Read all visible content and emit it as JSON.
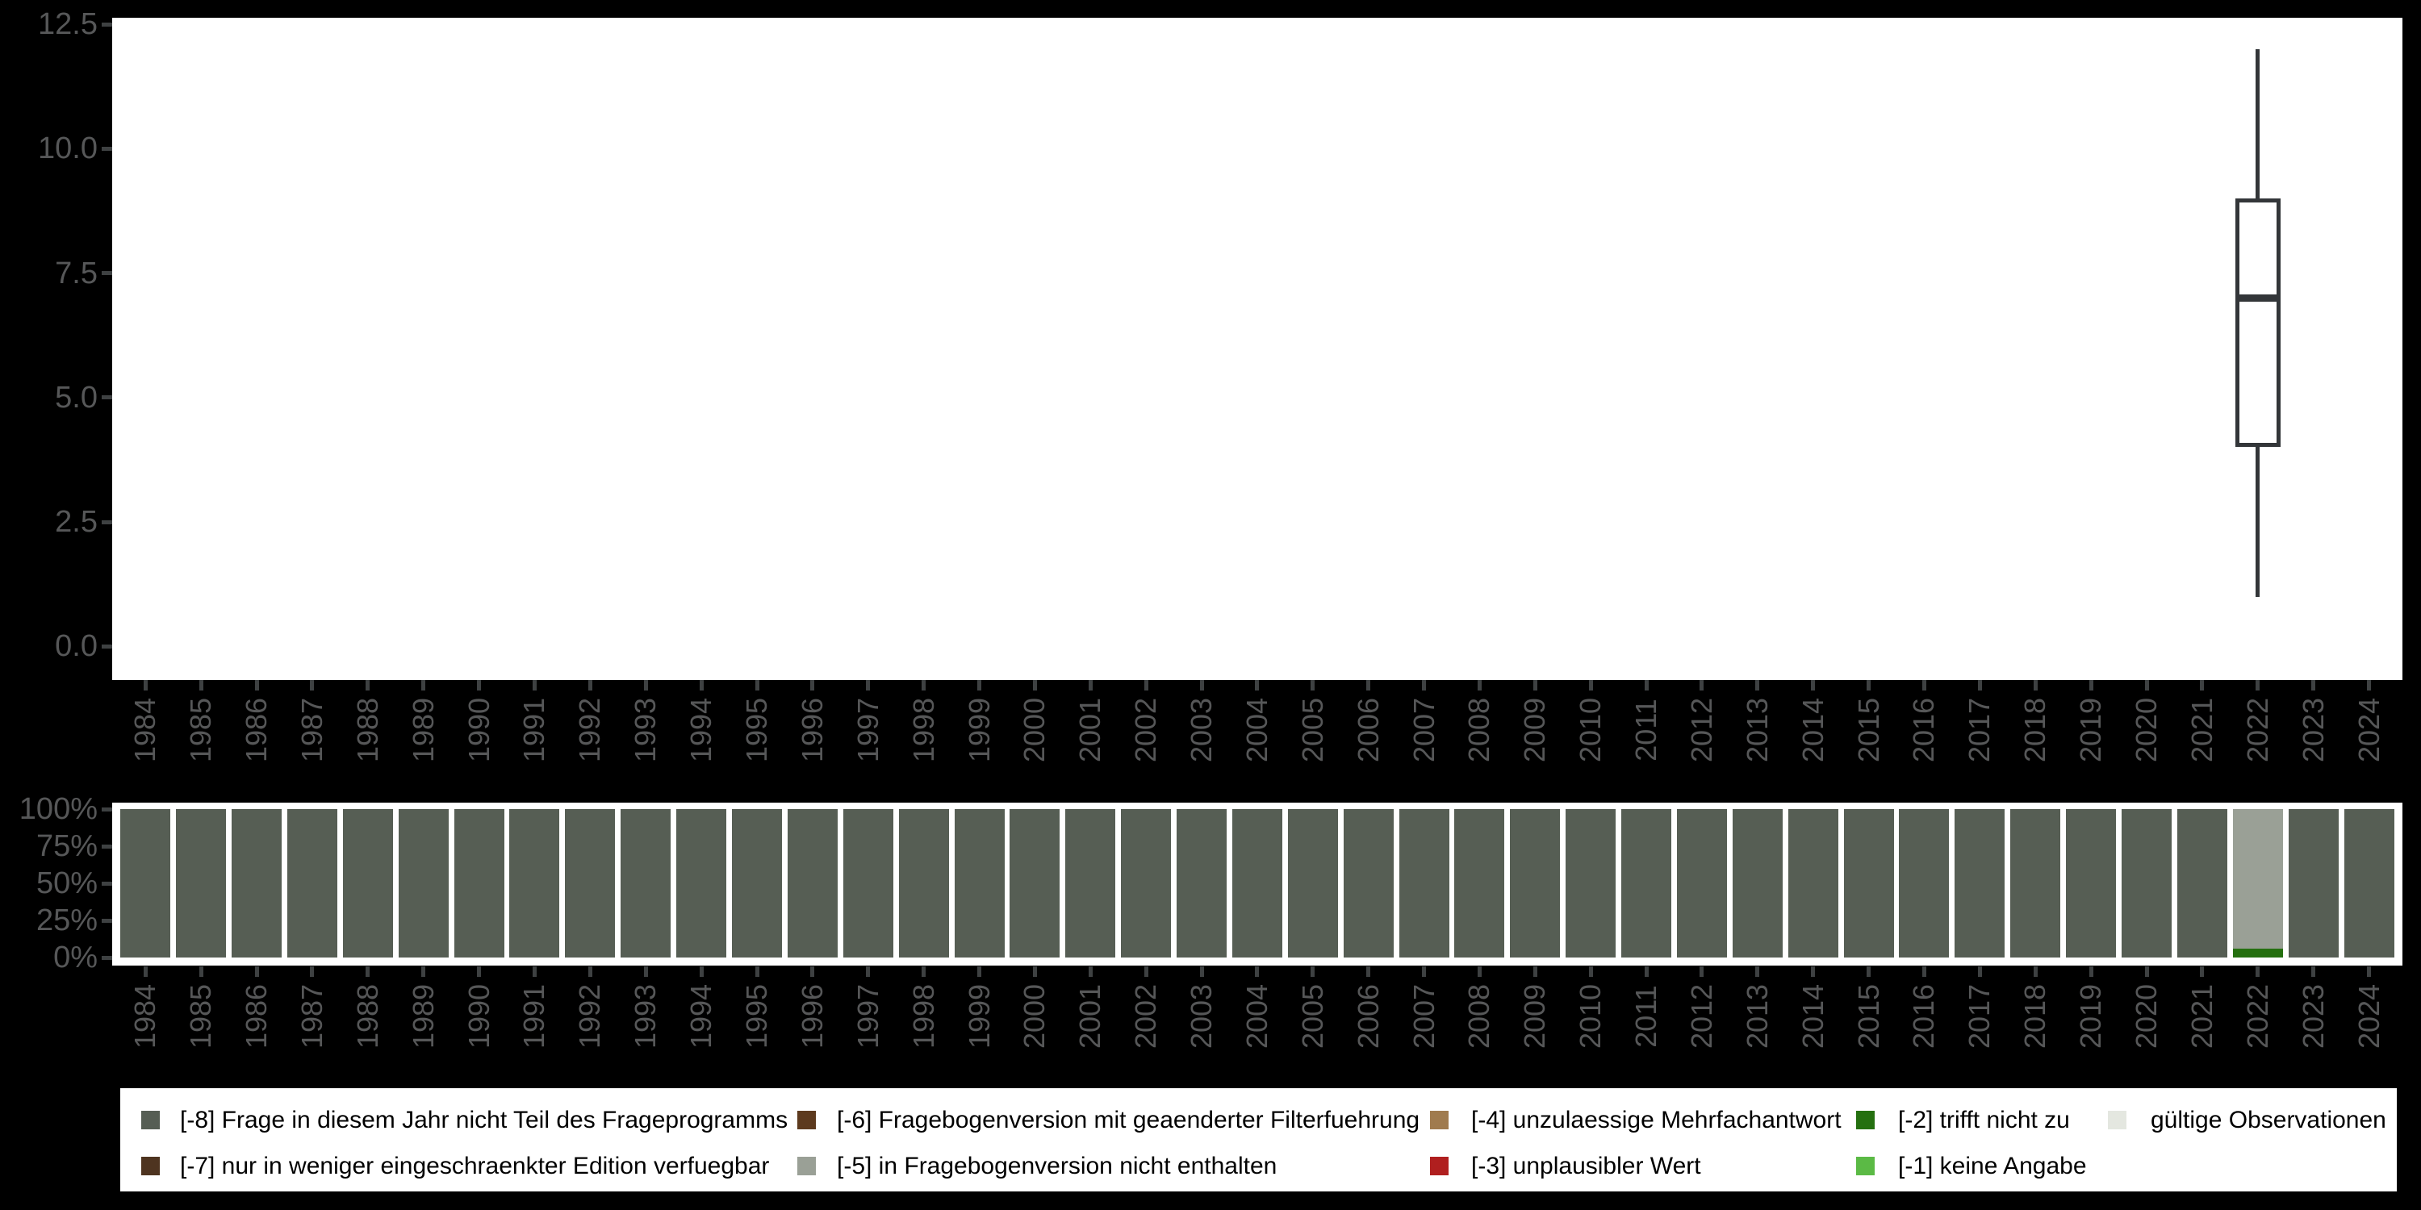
{
  "figure": {
    "title": "",
    "background_color": "#000000",
    "panel_color": "#ffffff"
  },
  "colors": {
    "axis_label": "#565758",
    "tick_mark": "#3e4142",
    "box_stroke": "#333639",
    "legend_text": "#000000"
  },
  "chart_data": [
    {
      "type": "boxplot",
      "title": "",
      "xlabel": "",
      "ylabel": "",
      "ylim": [
        0,
        12.5
      ],
      "y_tick_values": [
        12.5,
        10.0,
        7.5,
        5.0,
        2.5,
        0.0
      ],
      "y_tick_labels": [
        "12.5",
        "10.0",
        "7.5",
        "5.0",
        "2.5",
        "0.0"
      ],
      "x_categories": [
        "1984",
        "1985",
        "1986",
        "1987",
        "1988",
        "1989",
        "1990",
        "1991",
        "1992",
        "1993",
        "1994",
        "1995",
        "1996",
        "1997",
        "1998",
        "1999",
        "2000",
        "2001",
        "2002",
        "2003",
        "2004",
        "2005",
        "2006",
        "2007",
        "2008",
        "2009",
        "2010",
        "2011",
        "2012",
        "2013",
        "2014",
        "2015",
        "2016",
        "2017",
        "2018",
        "2019",
        "2020",
        "2021",
        "2022",
        "2023",
        "2024"
      ],
      "series": [
        {
          "x": "2022",
          "min": 1,
          "q1": 4,
          "median": 7,
          "q3": 9,
          "max": 12
        }
      ]
    },
    {
      "type": "bar",
      "stacked": true,
      "unit": "percent",
      "title": "",
      "xlabel": "",
      "ylabel": "",
      "ylim": [
        0,
        100
      ],
      "y_tick_values": [
        100,
        75,
        50,
        25,
        0
      ],
      "y_tick_labels": [
        "100%",
        "75%",
        "50%",
        "25%",
        "0%"
      ],
      "x_categories": [
        "1984",
        "1985",
        "1986",
        "1987",
        "1988",
        "1989",
        "1990",
        "1991",
        "1992",
        "1993",
        "1994",
        "1995",
        "1996",
        "1997",
        "1998",
        "1999",
        "2000",
        "2001",
        "2002",
        "2003",
        "2004",
        "2005",
        "2006",
        "2007",
        "2008",
        "2009",
        "2010",
        "2011",
        "2012",
        "2013",
        "2014",
        "2015",
        "2016",
        "2017",
        "2018",
        "2019",
        "2020",
        "2021",
        "2022",
        "2023",
        "2024"
      ],
      "series": [
        {
          "name": "[-8] Frage in diesem Jahr nicht Teil des Frageprogramms",
          "values": [
            100,
            100,
            100,
            100,
            100,
            100,
            100,
            100,
            100,
            100,
            100,
            100,
            100,
            100,
            100,
            100,
            100,
            100,
            100,
            100,
            100,
            100,
            100,
            100,
            100,
            100,
            100,
            100,
            100,
            100,
            100,
            100,
            100,
            100,
            100,
            100,
            100,
            100,
            0,
            100,
            100
          ]
        },
        {
          "name": "[-5] in Fragebogenversion nicht enthalten",
          "values": [
            0,
            0,
            0,
            0,
            0,
            0,
            0,
            0,
            0,
            0,
            0,
            0,
            0,
            0,
            0,
            0,
            0,
            0,
            0,
            0,
            0,
            0,
            0,
            0,
            0,
            0,
            0,
            0,
            0,
            0,
            0,
            0,
            0,
            0,
            0,
            0,
            0,
            0,
            94,
            0,
            0
          ]
        },
        {
          "name": "[-2] trifft nicht zu",
          "values": [
            0,
            0,
            0,
            0,
            0,
            0,
            0,
            0,
            0,
            0,
            0,
            0,
            0,
            0,
            0,
            0,
            0,
            0,
            0,
            0,
            0,
            0,
            0,
            0,
            0,
            0,
            0,
            0,
            0,
            0,
            0,
            0,
            0,
            0,
            0,
            0,
            0,
            0,
            6,
            0,
            0
          ]
        }
      ]
    }
  ],
  "legend": {
    "items": [
      {
        "label": "[-8] Frage in diesem Jahr nicht Teil des Frageprogramms",
        "color": "#565e54",
        "col": 0,
        "row": 0
      },
      {
        "label": "[-7] nur in weniger eingeschraenkter Edition verfuegbar",
        "color": "#4e3420",
        "col": 0,
        "row": 1
      },
      {
        "label": "[-6] Fragebogenversion mit geaenderter Filterfuehrung",
        "color": "#5d3a1e",
        "col": 1,
        "row": 0
      },
      {
        "label": "[-5] in Fragebogenversion nicht enthalten",
        "color": "#9aa096",
        "col": 1,
        "row": 1
      },
      {
        "label": "[-4] unzulaessige Mehrfachantwort",
        "color": "#a07b4e",
        "col": 2,
        "row": 0
      },
      {
        "label": "[-3] unplausibler Wert",
        "color": "#b01f1f",
        "col": 2,
        "row": 1
      },
      {
        "label": "[-2] trifft nicht zu",
        "color": "#257010",
        "col": 3,
        "row": 0
      },
      {
        "label": "[-1] keine Angabe",
        "color": "#5bba45",
        "col": 3,
        "row": 1
      },
      {
        "label": "gültige Observationen",
        "color": "#e4e7e0",
        "col": 4,
        "row": 0
      }
    ]
  }
}
